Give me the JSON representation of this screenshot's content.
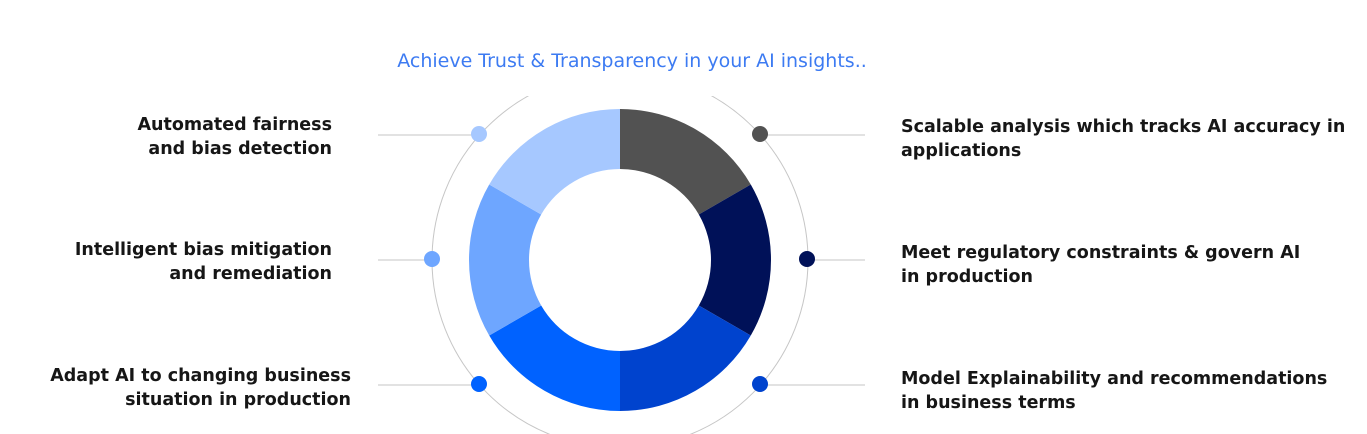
{
  "title": "Achieve Trust & Transparency in your AI insights..",
  "items": [
    {
      "lines": [
        "Scalable analysis which tracks AI accuracy in",
        "applications"
      ],
      "color": "#525252"
    },
    {
      "lines": [
        "Meet regulatory constraints & govern AI",
        "in production"
      ],
      "color": "#001158"
    },
    {
      "lines": [
        "Model Explainability and recommendations",
        "in business terms"
      ],
      "color": "#0043ce"
    },
    {
      "lines": [
        "Adapt AI to changing business",
        "situation in production"
      ],
      "color": "#0062ff"
    },
    {
      "lines": [
        "Intelligent bias mitigation",
        "and remediation"
      ],
      "color": "#6ea6ff"
    },
    {
      "lines": [
        "Automated fairness",
        "and bias detection"
      ],
      "color": "#a6c8ff"
    }
  ]
}
